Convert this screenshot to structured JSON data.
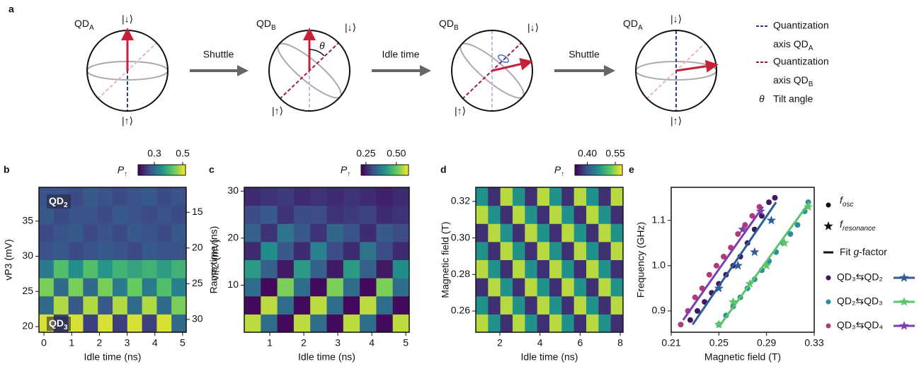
{
  "diagram": {
    "panel": "a",
    "spheres": [
      {
        "label": {
          "text": "QD",
          "sub": "A"
        },
        "top": "|↓⟩",
        "bottom": "|↑⟩"
      },
      {
        "label": {
          "text": "QD",
          "sub": "B"
        },
        "top": "|↓⟩",
        "bottom": "|↑⟩",
        "angle": "θ"
      },
      {
        "label": {
          "text": "QD",
          "sub": "B"
        },
        "top": "|↓⟩",
        "bottom": "|↑⟩"
      },
      {
        "label": {
          "text": "QD",
          "sub": "A"
        },
        "top": "|↓⟩",
        "bottom": "|↑⟩"
      }
    ],
    "steps": [
      "Shuttle",
      "Idle time",
      "Shuttle"
    ],
    "legend": [
      {
        "line1": "Quantization",
        "line2": {
          "text": "axis QD",
          "sub": "A"
        },
        "color": "#2b3a8c"
      },
      {
        "line1": "Quantization",
        "line2": {
          "text": "axis QD",
          "sub": "B"
        },
        "color": "#9b1b5a"
      }
    ],
    "tilt": {
      "symbol": "θ",
      "text": "Tilt angle"
    }
  },
  "chart_data": [
    {
      "type": "heatmap",
      "panel": "b",
      "xlabel": "Idle time (ns)",
      "ylabel": "vP3 (mV)",
      "y2label": "vP2 (mV)",
      "xlim": [
        -0.18,
        5.13
      ],
      "ylim": [
        19.2,
        39.8
      ],
      "y2lim": [
        31.8,
        11.5
      ],
      "xticks": [
        0,
        1,
        2,
        3,
        4,
        5
      ],
      "yticks": [
        20,
        25,
        30,
        35
      ],
      "y2ticks": [
        15,
        20,
        25,
        30
      ],
      "clabel": {
        "text": "P",
        "sub": "↑"
      },
      "clim": [
        0.185,
        0.52
      ],
      "cticks": [
        0.3,
        0.5
      ],
      "annotations": [
        {
          "text": "QD",
          "sub": "2"
        },
        {
          "text": "QD",
          "sub": "3"
        }
      ],
      "z": [
        [
          0.5,
          0.25,
          0.5,
          0.25,
          0.5,
          0.25,
          0.5,
          0.25,
          0.5,
          0.3
        ],
        [
          0.3,
          0.48,
          0.28,
          0.48,
          0.28,
          0.48,
          0.3,
          0.48,
          0.3,
          0.45
        ],
        [
          0.45,
          0.3,
          0.45,
          0.3,
          0.45,
          0.32,
          0.44,
          0.32,
          0.42,
          0.33
        ],
        [
          0.32,
          0.42,
          0.35,
          0.42,
          0.36,
          0.4,
          0.38,
          0.4,
          0.37,
          0.4
        ],
        [
          0.27,
          0.28,
          0.26,
          0.27,
          0.28,
          0.27,
          0.26,
          0.28,
          0.27,
          0.27
        ],
        [
          0.26,
          0.27,
          0.28,
          0.26,
          0.27,
          0.26,
          0.28,
          0.27,
          0.26,
          0.28
        ],
        [
          0.28,
          0.26,
          0.27,
          0.27,
          0.26,
          0.28,
          0.27,
          0.26,
          0.27,
          0.26
        ],
        [
          0.27,
          0.27,
          0.26,
          0.28,
          0.27,
          0.26,
          0.27,
          0.28,
          0.26,
          0.27
        ]
      ]
    },
    {
      "type": "heatmap",
      "panel": "c",
      "xlabel": "Idle time (ns)",
      "ylabel": "Ramp time (ns)",
      "xlim": [
        0.25,
        5.1
      ],
      "ylim": [
        0,
        30.8
      ],
      "xticks": [
        1,
        2,
        3,
        4,
        5
      ],
      "yticks": [
        10,
        20,
        30
      ],
      "clabel": {
        "text": "P",
        "sub": "↑"
      },
      "clim": [
        0.21,
        0.6
      ],
      "cticks": [
        0.25,
        {
          "value": 0.5,
          "label": "0.50"
        }
      ],
      "z": [
        [
          0.56,
          0.35,
          0.22,
          0.56,
          0.35,
          0.22,
          0.56,
          0.35,
          0.22,
          0.56
        ],
        [
          0.22,
          0.56,
          0.35,
          0.22,
          0.56,
          0.35,
          0.22,
          0.56,
          0.35,
          0.22
        ],
        [
          0.35,
          0.22,
          0.52,
          0.35,
          0.22,
          0.52,
          0.35,
          0.22,
          0.52,
          0.35
        ],
        [
          0.42,
          0.33,
          0.24,
          0.42,
          0.33,
          0.24,
          0.42,
          0.33,
          0.24,
          0.4
        ],
        [
          0.26,
          0.4,
          0.32,
          0.26,
          0.38,
          0.3,
          0.26,
          0.36,
          0.3,
          0.26
        ],
        [
          0.33,
          0.27,
          0.36,
          0.32,
          0.27,
          0.34,
          0.31,
          0.26,
          0.32,
          0.3
        ],
        [
          0.3,
          0.32,
          0.27,
          0.3,
          0.3,
          0.27,
          0.28,
          0.29,
          0.26,
          0.27
        ],
        [
          0.26,
          0.27,
          0.28,
          0.26,
          0.27,
          0.26,
          0.27,
          0.26,
          0.25,
          0.26
        ]
      ]
    },
    {
      "type": "heatmap",
      "panel": "d",
      "xlabel": "Idle time (ns)",
      "ylabel": "Magnetic field (T)",
      "xlim": [
        0.8,
        8.14
      ],
      "ylim": [
        0.2484,
        0.3277
      ],
      "xticks": [
        2,
        4,
        6,
        8
      ],
      "yticks": [
        0.26,
        0.28,
        {
          "value": 0.3,
          "label": "0.30"
        },
        0.32
      ],
      "clabel": {
        "text": "P",
        "sub": "↑"
      },
      "clim": [
        0.333,
        0.588
      ],
      "cticks": [
        {
          "value": 0.4,
          "label": "0.40"
        },
        0.55
      ],
      "z": [
        [
          0.56,
          0.46,
          0.37,
          0.56,
          0.46,
          0.37,
          0.56,
          0.46,
          0.37,
          0.56,
          0.46,
          0.37
        ],
        [
          0.46,
          0.37,
          0.56,
          0.46,
          0.37,
          0.56,
          0.46,
          0.37,
          0.56,
          0.46,
          0.37,
          0.56
        ],
        [
          0.37,
          0.56,
          0.46,
          0.37,
          0.56,
          0.46,
          0.37,
          0.56,
          0.46,
          0.37,
          0.56,
          0.46
        ],
        [
          0.56,
          0.46,
          0.37,
          0.56,
          0.46,
          0.37,
          0.56,
          0.46,
          0.37,
          0.56,
          0.46,
          0.37
        ],
        [
          0.46,
          0.37,
          0.56,
          0.46,
          0.37,
          0.56,
          0.46,
          0.37,
          0.56,
          0.46,
          0.37,
          0.56
        ],
        [
          0.37,
          0.56,
          0.46,
          0.37,
          0.56,
          0.46,
          0.37,
          0.56,
          0.46,
          0.37,
          0.56,
          0.46
        ],
        [
          0.56,
          0.46,
          0.37,
          0.56,
          0.46,
          0.37,
          0.56,
          0.46,
          0.37,
          0.56,
          0.46,
          0.37
        ],
        [
          0.46,
          0.37,
          0.56,
          0.46,
          0.37,
          0.56,
          0.46,
          0.37,
          0.56,
          0.46,
          0.37,
          0.56
        ]
      ]
    },
    {
      "type": "scatter",
      "panel": "e",
      "xlabel": "Magnetic field (T)",
      "ylabel": "Frequency (GHz)",
      "xlim": [
        0.21,
        0.33
      ],
      "ylim": [
        0.853,
        1.173
      ],
      "xticks": [
        0.21,
        0.25,
        0.29,
        0.33
      ],
      "yticks": [
        0.9,
        {
          "value": 1,
          "label": "1.0"
        },
        1.1
      ],
      "legend": {
        "osc": {
          "text": "f",
          "sub": "osc"
        },
        "resonance": {
          "text": "f",
          "sub": "resonance"
        },
        "fit": {
          "pre": "Fit ",
          "italic": "g",
          "post": "-factor"
        }
      },
      "series": [
        {
          "name": "QD₃⇆QD₂",
          "dot_color": "#3d1a5e",
          "color": "#2e5d9a",
          "osc": {
            "x": [
              0.226,
              0.232,
              0.238,
              0.244,
              0.25,
              0.256,
              0.262,
              0.268,
              0.274,
              0.28,
              0.286,
              0.292,
              0.297
            ],
            "y": [
              0.88,
              0.9,
              0.92,
              0.94,
              0.96,
              0.98,
              1.0,
              1.02,
              1.05,
              1.08,
              1.11,
              1.14,
              1.15
            ]
          },
          "resonance": {
            "x": [
              0.25,
              0.266,
              0.28,
              0.294
            ],
            "y": [
              0.95,
              1.0,
              1.03,
              1.1
            ]
          },
          "fit": {
            "x": [
              0.228,
              0.298
            ],
            "y": [
              0.87,
              1.14
            ]
          }
        },
        {
          "name": "QD₂⇆QD₃",
          "dot_color": "#2a8f9a",
          "color": "#5cc46a",
          "osc": {
            "x": [
              0.25,
              0.256,
              0.262,
              0.268,
              0.274,
              0.28,
              0.286,
              0.292,
              0.298,
              0.304,
              0.31,
              0.316,
              0.322,
              0.325
            ],
            "y": [
              0.87,
              0.89,
              0.91,
              0.93,
              0.95,
              0.97,
              0.99,
              1.01,
              1.03,
              1.05,
              1.07,
              1.09,
              1.12,
              1.14
            ]
          },
          "resonance": {
            "x": [
              0.25,
              0.262,
              0.276,
              0.29,
              0.305,
              0.325
            ],
            "y": [
              0.87,
              0.92,
              0.96,
              1.0,
              1.05,
              1.13
            ]
          },
          "fit": {
            "x": [
              0.25,
              0.326
            ],
            "y": [
              0.865,
              1.14
            ]
          }
        },
        {
          "name": "QD₃⇆QD₄",
          "dot_color": "#b03a7a",
          "color": "#7b3fb0",
          "osc": {
            "x": [
              0.218,
              0.224,
              0.23,
              0.236,
              0.242,
              0.248,
              0.254,
              0.26,
              0.266,
              0.272,
              0.278,
              0.284
            ],
            "y": [
              0.87,
              0.9,
              0.93,
              0.95,
              0.98,
              1.0,
              1.02,
              1.04,
              1.07,
              1.09,
              1.11,
              1.13
            ]
          },
          "resonance": {
            "x": [
              0.27,
              0.285
            ],
            "y": [
              1.08,
              1.12
            ]
          },
          "fit": {
            "x": [
              0.22,
              0.287
            ],
            "y": [
              0.88,
              1.13
            ]
          }
        }
      ]
    }
  ]
}
